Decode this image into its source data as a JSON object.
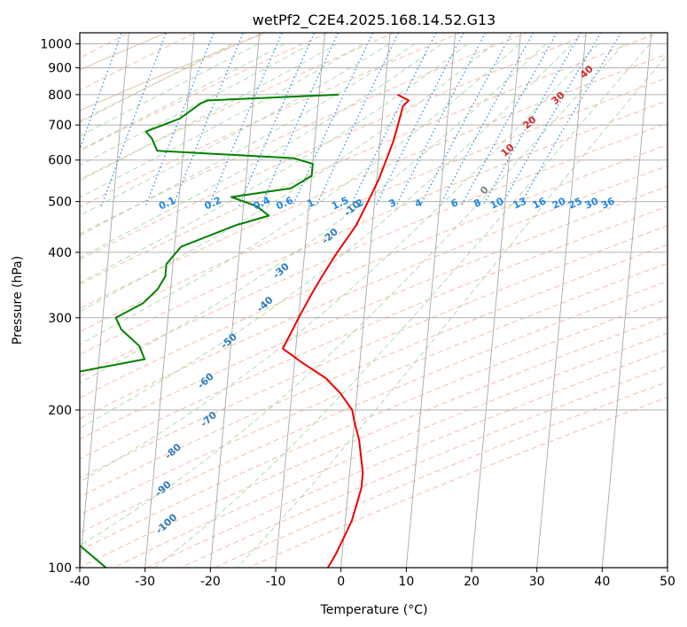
{
  "chart_data": {
    "type": "skew-t log-p",
    "title": "wetPf2_C2E4.2025.168.14.52.G13",
    "xlabel": "Temperature (°C)",
    "ylabel": "Pressure (hPa)",
    "xlim": [
      -40,
      50
    ],
    "ylim": [
      1050,
      100
    ],
    "y_scale": "log",
    "grid": true,
    "x_ticks": [
      "-40",
      "-30",
      "-20",
      "-10",
      "0",
      "10",
      "20",
      "30",
      "40",
      "50"
    ],
    "y_ticks": [
      "100",
      "200",
      "300",
      "400",
      "500",
      "600",
      "700",
      "800",
      "900",
      "1000"
    ],
    "colors": {
      "temperature": "#ee0000",
      "dewpoint": "#008000",
      "isotherm": "#999999",
      "dry_adiabat": "#f4a582",
      "moist_adiabat": "#9bd39b",
      "mixing_ratio": "#1e88e5",
      "dry_adiabat_label": "#d62728",
      "moist_adiabat_label": "#2b7bba",
      "zero_label": "#808080",
      "saturated_isentrope": "#dec8a8"
    },
    "series": [
      {
        "name": "temperature",
        "points": [
          [
            -2,
            100
          ],
          [
            -1,
            106
          ],
          [
            0,
            114
          ],
          [
            1,
            123
          ],
          [
            1.5,
            132
          ],
          [
            2,
            142
          ],
          [
            2,
            152
          ],
          [
            1.5,
            163
          ],
          [
            1,
            175
          ],
          [
            0,
            190
          ],
          [
            -0.5,
            200
          ],
          [
            -2.5,
            215
          ],
          [
            -5,
            230
          ],
          [
            -9,
            247
          ],
          [
            -12,
            262
          ],
          [
            -11,
            280
          ],
          [
            -10,
            300
          ],
          [
            -8.5,
            330
          ],
          [
            -7,
            360
          ],
          [
            -5,
            400
          ],
          [
            -2.5,
            450
          ],
          [
            -1,
            500
          ],
          [
            0.3,
            550
          ],
          [
            1.2,
            600
          ],
          [
            2,
            650
          ],
          [
            2.5,
            700
          ],
          [
            3,
            760
          ],
          [
            3.8,
            780
          ],
          [
            2,
            800
          ]
        ]
      },
      {
        "name": "dewpoint",
        "points": [
          [
            -36,
            100
          ],
          [
            -41,
            112
          ],
          [
            -46,
            126
          ],
          [
            -51,
            140
          ],
          [
            -55,
            158
          ],
          [
            -54.5,
            175
          ],
          [
            -46,
            192
          ],
          [
            -62,
            205
          ],
          [
            -73,
            215
          ],
          [
            -48,
            230
          ],
          [
            -33,
            250
          ],
          [
            -34,
            265
          ],
          [
            -37,
            285
          ],
          [
            -38,
            300
          ],
          [
            -34,
            320
          ],
          [
            -32,
            340
          ],
          [
            -31,
            360
          ],
          [
            -31,
            380
          ],
          [
            -29,
            410
          ],
          [
            -21,
            450
          ],
          [
            -16,
            470
          ],
          [
            -18,
            490
          ],
          [
            -22,
            510
          ],
          [
            -13,
            530
          ],
          [
            -10,
            560
          ],
          [
            -10,
            590
          ],
          [
            -13,
            605
          ],
          [
            -34,
            625
          ],
          [
            -35,
            660
          ],
          [
            -36,
            680
          ],
          [
            -31,
            720
          ],
          [
            -28,
            770
          ],
          [
            -27,
            780
          ],
          [
            -7,
            800
          ]
        ]
      }
    ],
    "line_labels": {
      "moist_adiabats": [
        {
          "text": "-100",
          "x": -27,
          "y": 120
        },
        {
          "text": "-90",
          "x": -28,
          "y": 140
        },
        {
          "text": "-80",
          "x": -27,
          "y": 165
        },
        {
          "text": "-70",
          "x": -22,
          "y": 190
        },
        {
          "text": "-60",
          "x": -23,
          "y": 225
        },
        {
          "text": "-50",
          "x": -20,
          "y": 268
        },
        {
          "text": "-40",
          "x": -15,
          "y": 315
        },
        {
          "text": "-30",
          "x": -13,
          "y": 365
        },
        {
          "text": "-20",
          "x": -6,
          "y": 425
        },
        {
          "text": "-10",
          "x": -3,
          "y": 480
        }
      ],
      "dry_adiabats": [
        {
          "text": "0",
          "x": 17,
          "y": 520
        },
        {
          "text": "10",
          "x": 20,
          "y": 620
        },
        {
          "text": "20",
          "x": 23,
          "y": 700
        },
        {
          "text": "30",
          "x": 27,
          "y": 780
        },
        {
          "text": "40",
          "x": 31,
          "y": 875
        }
      ],
      "mixing_ratios": [
        {
          "text": "0.1",
          "x": -31.5,
          "y": 490
        },
        {
          "text": "0.2",
          "x": -24.5,
          "y": 490
        },
        {
          "text": "0.4",
          "x": -17,
          "y": 490
        },
        {
          "text": "0.6",
          "x": -13.5,
          "y": 490
        },
        {
          "text": "1",
          "x": -9.5,
          "y": 490
        },
        {
          "text": "1.5",
          "x": -5,
          "y": 490
        },
        {
          "text": "2",
          "x": -2,
          "y": 490
        },
        {
          "text": "3",
          "x": 3,
          "y": 490
        },
        {
          "text": "4",
          "x": 7,
          "y": 490
        },
        {
          "text": "6",
          "x": 12.5,
          "y": 490
        },
        {
          "text": "8",
          "x": 16,
          "y": 490
        },
        {
          "text": "10",
          "x": 19,
          "y": 490
        },
        {
          "text": "13",
          "x": 22.5,
          "y": 490
        },
        {
          "text": "16",
          "x": 25.5,
          "y": 490
        },
        {
          "text": "20",
          "x": 28.5,
          "y": 490
        },
        {
          "text": "25",
          "x": 31,
          "y": 490
        },
        {
          "text": "30",
          "x": 33.5,
          "y": 490
        },
        {
          "text": "36",
          "x": 36,
          "y": 490
        }
      ]
    }
  }
}
